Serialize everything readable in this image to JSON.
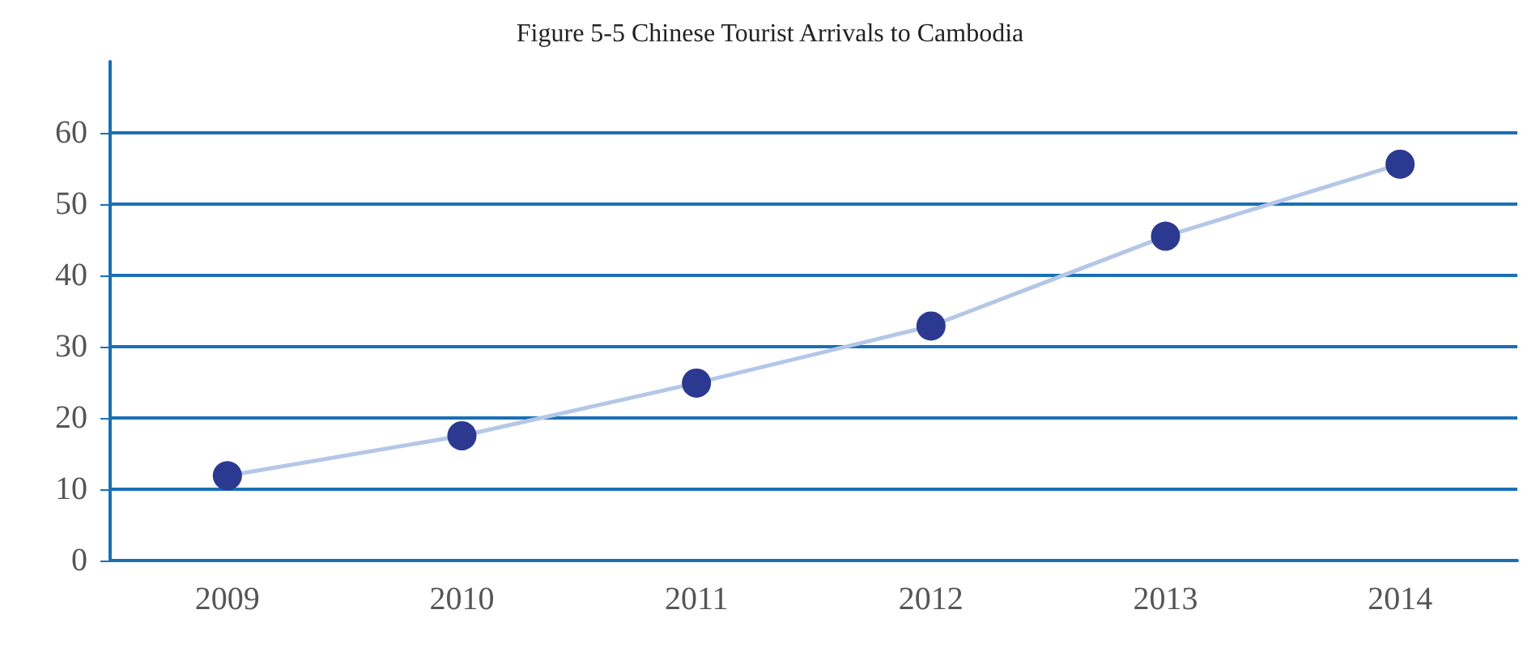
{
  "chart_data": {
    "type": "line",
    "title": "Figure 5-5 Chinese Tourist Arrivals to Cambodia",
    "categories": [
      "2009",
      "2010",
      "2011",
      "2012",
      "2013",
      "2014"
    ],
    "series": [
      {
        "color": "#b4c7e7",
        "values": [
          11.9,
          17.5,
          24.9,
          32.9,
          45.5,
          55.6
        ]
      }
    ],
    "ylim": [
      0,
      70
    ],
    "yticks": [
      0,
      10,
      20,
      30,
      40,
      50,
      60
    ],
    "grid": "y",
    "marker": "circle",
    "line_style": "solid"
  }
}
